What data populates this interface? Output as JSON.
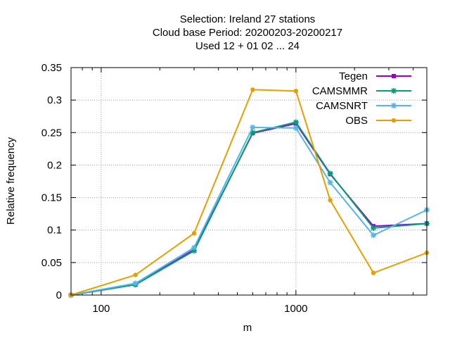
{
  "chart_data": {
    "type": "line",
    "title_lines": [
      "Selection: Ireland      27 stations",
      "Cloud base  Period: 20200203-20200217",
      "Used  12 + 01 02 ... 24"
    ],
    "xlabel": "m",
    "ylabel": "Relative frequency",
    "x_scale": "log",
    "xlim": [
      70,
      4700
    ],
    "ylim": [
      0,
      0.35
    ],
    "x_ticks": [
      {
        "value": 100,
        "label": "100"
      },
      {
        "value": 1000,
        "label": "1000"
      }
    ],
    "y_ticks": [
      {
        "value": 0,
        "label": "0"
      },
      {
        "value": 0.05,
        "label": "0.05"
      },
      {
        "value": 0.1,
        "label": "0.1"
      },
      {
        "value": 0.15,
        "label": "0.15"
      },
      {
        "value": 0.2,
        "label": "0.2"
      },
      {
        "value": 0.25,
        "label": "0.25"
      },
      {
        "value": 0.3,
        "label": "0.3"
      },
      {
        "value": 0.35,
        "label": "0.35"
      }
    ],
    "grid": true,
    "legend_position": "top-right",
    "x": [
      70,
      150,
      300,
      600,
      1000,
      1500,
      2500,
      4700
    ],
    "series": [
      {
        "name": "Tegen",
        "color": "#9400d3",
        "marker": "square",
        "values": [
          0.0,
          0.016,
          0.07,
          0.249,
          0.264,
          0.186,
          0.106,
          0.11
        ]
      },
      {
        "name": "CAMSMMR",
        "color": "#009e73",
        "marker": "asterisk",
        "values": [
          0.0,
          0.016,
          0.068,
          0.25,
          0.266,
          0.187,
          0.103,
          0.11
        ]
      },
      {
        "name": "CAMSNRT",
        "color": "#56b4e9",
        "marker": "asterisk",
        "values": [
          0.0,
          0.018,
          0.073,
          0.258,
          0.257,
          0.173,
          0.092,
          0.131
        ]
      },
      {
        "name": "OBS",
        "color": "#e69f00",
        "marker": "circle",
        "values": [
          0.0,
          0.031,
          0.095,
          0.316,
          0.314,
          0.146,
          0.034,
          0.065
        ]
      }
    ]
  }
}
